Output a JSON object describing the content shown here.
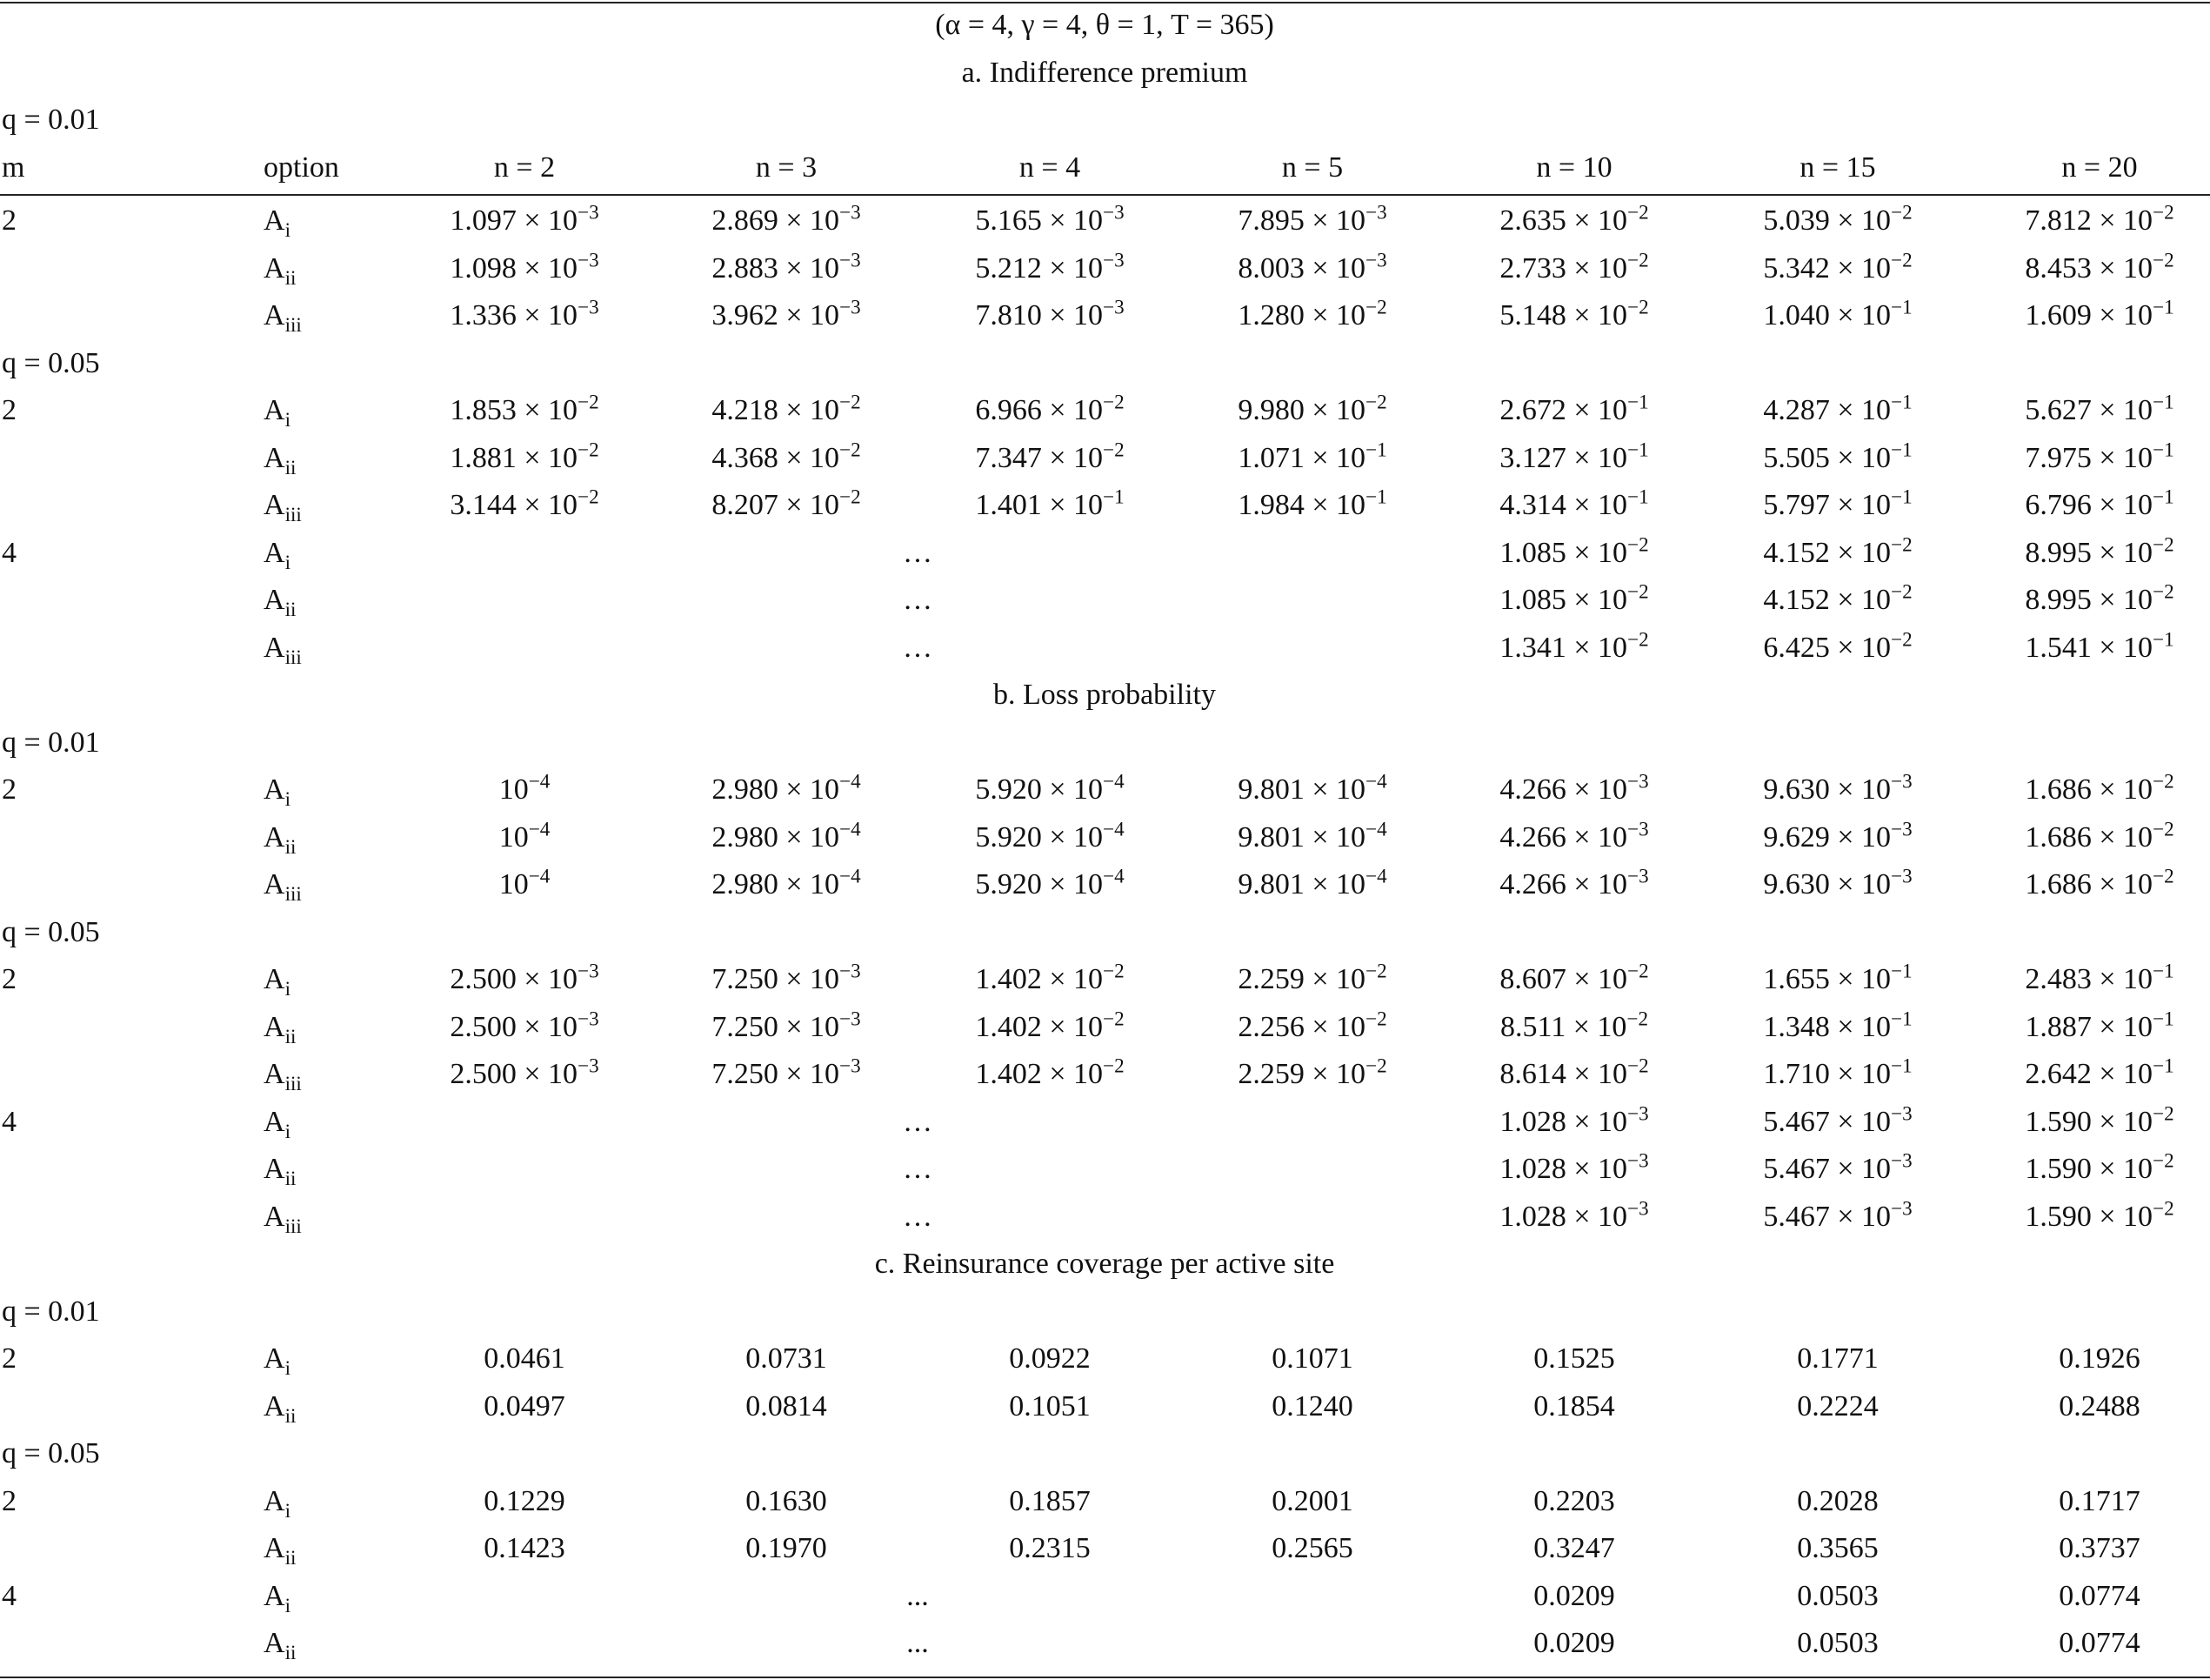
{
  "params": "(α = 4, γ = 4,  θ = 1,  T = 365)",
  "header": {
    "m": "m",
    "option": "option",
    "n": [
      "n = 2",
      "n = 3",
      "n = 4",
      "n = 5",
      "n = 10",
      "n = 15",
      "n = 20"
    ]
  },
  "sections": [
    {
      "title": "a. Indifference premium",
      "groups": [
        {
          "q": "q = 0.01",
          "rows": [
            {
              "m": "2",
              "option": {
                "base": "A",
                "sub": "i"
              },
              "cells": [
                {
                  "base": "1.097 × 10",
                  "exp": "−3"
                },
                {
                  "base": "2.869 × 10",
                  "exp": "−3"
                },
                {
                  "base": "5.165 × 10",
                  "exp": "−3"
                },
                {
                  "base": "7.895 × 10",
                  "exp": "−3"
                },
                {
                  "base": "2.635 × 10",
                  "exp": "−2"
                },
                {
                  "base": "5.039 × 10",
                  "exp": "−2"
                },
                {
                  "base": "7.812 × 10",
                  "exp": "−2"
                }
              ]
            },
            {
              "option": {
                "base": "A",
                "sub": "ii"
              },
              "cells": [
                {
                  "base": "1.098 × 10",
                  "exp": "−3"
                },
                {
                  "base": "2.883 × 10",
                  "exp": "−3"
                },
                {
                  "base": "5.212 × 10",
                  "exp": "−3"
                },
                {
                  "base": "8.003 × 10",
                  "exp": "−3"
                },
                {
                  "base": "2.733 × 10",
                  "exp": "−2"
                },
                {
                  "base": "5.342 × 10",
                  "exp": "−2"
                },
                {
                  "base": "8.453 × 10",
                  "exp": "−2"
                }
              ]
            },
            {
              "option": {
                "base": "A",
                "sub": "iii"
              },
              "cells": [
                {
                  "base": "1.336 × 10",
                  "exp": "−3"
                },
                {
                  "base": "3.962 × 10",
                  "exp": "−3"
                },
                {
                  "base": "7.810 × 10",
                  "exp": "−3"
                },
                {
                  "base": "1.280 × 10",
                  "exp": "−2"
                },
                {
                  "base": "5.148 × 10",
                  "exp": "−2"
                },
                {
                  "base": "1.040 × 10",
                  "exp": "−1"
                },
                {
                  "base": "1.609 × 10",
                  "exp": "−1"
                }
              ]
            }
          ]
        },
        {
          "q": "q = 0.05",
          "rows": [
            {
              "m": "2",
              "option": {
                "base": "A",
                "sub": "i"
              },
              "cells": [
                {
                  "base": "1.853 × 10",
                  "exp": "−2"
                },
                {
                  "base": "4.218 × 10",
                  "exp": "−2"
                },
                {
                  "base": "6.966 × 10",
                  "exp": "−2"
                },
                {
                  "base": "9.980 × 10",
                  "exp": "−2"
                },
                {
                  "base": "2.672 × 10",
                  "exp": "−1"
                },
                {
                  "base": "4.287 × 10",
                  "exp": "−1"
                },
                {
                  "base": "5.627 × 10",
                  "exp": "−1"
                }
              ]
            },
            {
              "option": {
                "base": "A",
                "sub": "ii"
              },
              "cells": [
                {
                  "base": "1.881 × 10",
                  "exp": "−2"
                },
                {
                  "base": "4.368 × 10",
                  "exp": "−2"
                },
                {
                  "base": "7.347 × 10",
                  "exp": "−2"
                },
                {
                  "base": "1.071 × 10",
                  "exp": "−1"
                },
                {
                  "base": "3.127 × 10",
                  "exp": "−1"
                },
                {
                  "base": "5.505 × 10",
                  "exp": "−1"
                },
                {
                  "base": "7.975 × 10",
                  "exp": "−1"
                }
              ]
            },
            {
              "option": {
                "base": "A",
                "sub": "iii"
              },
              "cells": [
                {
                  "base": "3.144 × 10",
                  "exp": "−2"
                },
                {
                  "base": "8.207 × 10",
                  "exp": "−2"
                },
                {
                  "base": "1.401 × 10",
                  "exp": "−1"
                },
                {
                  "base": "1.984 × 10",
                  "exp": "−1"
                },
                {
                  "base": "4.314 × 10",
                  "exp": "−1"
                },
                {
                  "base": "5.797 × 10",
                  "exp": "−1"
                },
                {
                  "base": "6.796 × 10",
                  "exp": "−1"
                }
              ]
            },
            {
              "m": "4",
              "option": {
                "base": "A",
                "sub": "i"
              },
              "gap": "…",
              "cells": [
                {
                  "base": "1.085 × 10",
                  "exp": "−2"
                },
                {
                  "base": "4.152 × 10",
                  "exp": "−2"
                },
                {
                  "base": "8.995 × 10",
                  "exp": "−2"
                }
              ]
            },
            {
              "option": {
                "base": "A",
                "sub": "ii"
              },
              "gap": "…",
              "cells": [
                {
                  "base": "1.085 × 10",
                  "exp": "−2"
                },
                {
                  "base": "4.152 × 10",
                  "exp": "−2"
                },
                {
                  "base": "8.995 × 10",
                  "exp": "−2"
                }
              ]
            },
            {
              "option": {
                "base": "A",
                "sub": "iii"
              },
              "gap": "…",
              "cells": [
                {
                  "base": "1.341 × 10",
                  "exp": "−2"
                },
                {
                  "base": "6.425 × 10",
                  "exp": "−2"
                },
                {
                  "base": "1.541 × 10",
                  "exp": "−1"
                }
              ]
            }
          ]
        }
      ]
    },
    {
      "title": "b. Loss probability",
      "groups": [
        {
          "q": "q = 0.01",
          "rows": [
            {
              "m": "2",
              "option": {
                "base": "A",
                "sub": "i"
              },
              "cells": [
                {
                  "base": "10",
                  "exp": "−4"
                },
                {
                  "base": "2.980 × 10",
                  "exp": "−4"
                },
                {
                  "base": "5.920 × 10",
                  "exp": "−4"
                },
                {
                  "base": "9.801 × 10",
                  "exp": "−4"
                },
                {
                  "base": "4.266 × 10",
                  "exp": "−3"
                },
                {
                  "base": "9.630 × 10",
                  "exp": "−3"
                },
                {
                  "base": "1.686 × 10",
                  "exp": "−2"
                }
              ]
            },
            {
              "option": {
                "base": "A",
                "sub": "ii"
              },
              "cells": [
                {
                  "base": "10",
                  "exp": "−4"
                },
                {
                  "base": "2.980 × 10",
                  "exp": "−4"
                },
                {
                  "base": "5.920 × 10",
                  "exp": "−4"
                },
                {
                  "base": "9.801 × 10",
                  "exp": "−4"
                },
                {
                  "base": "4.266 × 10",
                  "exp": "−3"
                },
                {
                  "base": "9.629 × 10",
                  "exp": "−3"
                },
                {
                  "base": "1.686 × 10",
                  "exp": "−2"
                }
              ]
            },
            {
              "option": {
                "base": "A",
                "sub": "iii"
              },
              "cells": [
                {
                  "base": "10",
                  "exp": "−4"
                },
                {
                  "base": "2.980 × 10",
                  "exp": "−4"
                },
                {
                  "base": "5.920 × 10",
                  "exp": "−4"
                },
                {
                  "base": "9.801 × 10",
                  "exp": "−4"
                },
                {
                  "base": "4.266 × 10",
                  "exp": "−3"
                },
                {
                  "base": "9.630 × 10",
                  "exp": "−3"
                },
                {
                  "base": "1.686 × 10",
                  "exp": "−2"
                }
              ]
            }
          ]
        },
        {
          "q": "q = 0.05",
          "rows": [
            {
              "m": "2",
              "option": {
                "base": "A",
                "sub": "i"
              },
              "cells": [
                {
                  "base": "2.500 × 10",
                  "exp": "−3"
                },
                {
                  "base": "7.250 × 10",
                  "exp": "−3"
                },
                {
                  "base": "1.402 × 10",
                  "exp": "−2"
                },
                {
                  "base": "2.259 × 10",
                  "exp": "−2"
                },
                {
                  "base": "8.607 × 10",
                  "exp": "−2"
                },
                {
                  "base": "1.655 × 10",
                  "exp": "−1"
                },
                {
                  "base": "2.483 × 10",
                  "exp": "−1"
                }
              ]
            },
            {
              "option": {
                "base": "A",
                "sub": "ii"
              },
              "cells": [
                {
                  "base": "2.500 × 10",
                  "exp": "−3"
                },
                {
                  "base": "7.250 × 10",
                  "exp": "−3"
                },
                {
                  "base": "1.402 × 10",
                  "exp": "−2"
                },
                {
                  "base": "2.256 × 10",
                  "exp": "−2"
                },
                {
                  "base": "8.511 × 10",
                  "exp": "−2"
                },
                {
                  "base": "1.348 × 10",
                  "exp": "−1"
                },
                {
                  "base": "1.887 × 10",
                  "exp": "−1"
                }
              ]
            },
            {
              "option": {
                "base": "A",
                "sub": "iii"
              },
              "cells": [
                {
                  "base": "2.500 × 10",
                  "exp": "−3"
                },
                {
                  "base": "7.250 × 10",
                  "exp": "−3"
                },
                {
                  "base": "1.402 × 10",
                  "exp": "−2"
                },
                {
                  "base": "2.259 × 10",
                  "exp": "−2"
                },
                {
                  "base": "8.614 × 10",
                  "exp": "−2"
                },
                {
                  "base": "1.710 × 10",
                  "exp": "−1"
                },
                {
                  "base": "2.642 × 10",
                  "exp": "−1"
                }
              ]
            },
            {
              "m": "4",
              "option": {
                "base": "A",
                "sub": "i"
              },
              "gap": "…",
              "cells": [
                {
                  "base": "1.028 × 10",
                  "exp": "−3"
                },
                {
                  "base": "5.467 × 10",
                  "exp": "−3"
                },
                {
                  "base": "1.590 × 10",
                  "exp": "−2"
                }
              ]
            },
            {
              "option": {
                "base": "A",
                "sub": "ii"
              },
              "gap": "…",
              "cells": [
                {
                  "base": "1.028 × 10",
                  "exp": "−3"
                },
                {
                  "base": "5.467 × 10",
                  "exp": "−3"
                },
                {
                  "base": "1.590 × 10",
                  "exp": "−2"
                }
              ]
            },
            {
              "option": {
                "base": "A",
                "sub": "iii"
              },
              "gap": "…",
              "cells": [
                {
                  "base": "1.028 × 10",
                  "exp": "−3"
                },
                {
                  "base": "5.467 × 10",
                  "exp": "−3"
                },
                {
                  "base": "1.590 × 10",
                  "exp": "−2"
                }
              ]
            }
          ]
        }
      ]
    },
    {
      "title": "c. Reinsurance coverage per active site",
      "groups": [
        {
          "q": "q = 0.01",
          "rows": [
            {
              "m": "2",
              "option": {
                "base": "A",
                "sub": "i"
              },
              "cells": [
                "0.0461",
                "0.0731",
                "0.0922",
                "0.1071",
                "0.1525",
                "0.1771",
                "0.1926"
              ]
            },
            {
              "option": {
                "base": "A",
                "sub": "ii"
              },
              "cells": [
                "0.0497",
                "0.0814",
                "0.1051",
                "0.1240",
                "0.1854",
                "0.2224",
                "0.2488"
              ]
            }
          ]
        },
        {
          "q": "q = 0.05",
          "rows": [
            {
              "m": "2",
              "option": {
                "base": "A",
                "sub": "i"
              },
              "cells": [
                "0.1229",
                "0.1630",
                "0.1857",
                "0.2001",
                "0.2203",
                "0.2028",
                "0.1717"
              ]
            },
            {
              "option": {
                "base": "A",
                "sub": "ii"
              },
              "cells": [
                "0.1423",
                "0.1970",
                "0.2315",
                "0.2565",
                "0.3247",
                "0.3565",
                "0.3737"
              ]
            },
            {
              "m": "4",
              "option": {
                "base": "A",
                "sub": "i"
              },
              "gap": "...",
              "cells": [
                "0.0209",
                "0.0503",
                "0.0774"
              ]
            },
            {
              "option": {
                "base": "A",
                "sub": "ii"
              },
              "gap": "...",
              "cells": [
                "0.0209",
                "0.0503",
                "0.0774"
              ]
            }
          ]
        }
      ]
    }
  ]
}
